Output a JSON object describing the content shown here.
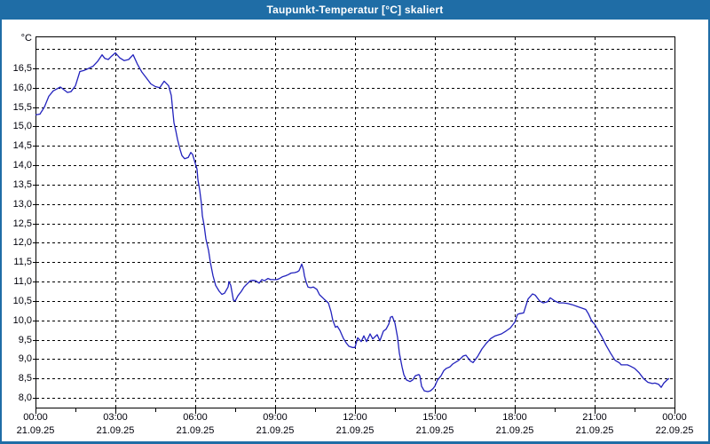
{
  "window": {
    "title": "Taupunkt-Temperatur [°C] skaliert"
  },
  "colors": {
    "titlebar": "#1f6da6",
    "frame": "#1f6da6",
    "line": "#2222bd",
    "plot_border": "#000000",
    "grid": "#000000",
    "text": "#00000a",
    "background": "#ffffff"
  },
  "chart_data": {
    "type": "line",
    "title": "Taupunkt-Temperatur [°C] skaliert",
    "unit_label": "°C",
    "xlabel": "",
    "ylabel": "°C",
    "grid": true,
    "legend": "none",
    "ylim": [
      7.77,
      17.32
    ],
    "ytick_step": 0.5,
    "ytick_top_unlabeled": 17.0,
    "yticks": [
      {
        "value": 16.5,
        "label": "16,5"
      },
      {
        "value": 16.0,
        "label": "16,0"
      },
      {
        "value": 15.5,
        "label": "15,5"
      },
      {
        "value": 15.0,
        "label": "15,0"
      },
      {
        "value": 14.5,
        "label": "14,5"
      },
      {
        "value": 14.0,
        "label": "14,0"
      },
      {
        "value": 13.5,
        "label": "13,5"
      },
      {
        "value": 13.0,
        "label": "13,0"
      },
      {
        "value": 12.5,
        "label": "12,5"
      },
      {
        "value": 12.0,
        "label": "12,0"
      },
      {
        "value": 11.5,
        "label": "11,5"
      },
      {
        "value": 11.0,
        "label": "11,0"
      },
      {
        "value": 10.5,
        "label": "10,5"
      },
      {
        "value": 10.0,
        "label": "10,0"
      },
      {
        "value": 9.5,
        "label": "9,5"
      },
      {
        "value": 9.0,
        "label": "9,0"
      },
      {
        "value": 8.5,
        "label": "8,5"
      },
      {
        "value": 8.0,
        "label": "8,0"
      }
    ],
    "xlim_hours": [
      0,
      24
    ],
    "x_minor_tick_hours": 1.5,
    "xticks": [
      {
        "hour": 0,
        "time": "00:00",
        "date": "21.09.25"
      },
      {
        "hour": 3,
        "time": "03:00",
        "date": "21.09.25"
      },
      {
        "hour": 6,
        "time": "06:00",
        "date": "21.09.25"
      },
      {
        "hour": 9,
        "time": "09:00",
        "date": "21.09.25"
      },
      {
        "hour": 12,
        "time": "12:00",
        "date": "21.09.25"
      },
      {
        "hour": 15,
        "time": "15:00",
        "date": "21.09.25"
      },
      {
        "hour": 18,
        "time": "18:00",
        "date": "21.09.25"
      },
      {
        "hour": 21,
        "time": "21:00",
        "date": "21.09.25"
      },
      {
        "hour": 24,
        "time": "00:00",
        "date": "22.09.25"
      }
    ],
    "series": [
      {
        "name": "Taupunkt-Temperatur",
        "points": [
          [
            0,
            15.3
          ],
          [
            10,
            15.32
          ],
          [
            20,
            15.5
          ],
          [
            30,
            15.78
          ],
          [
            40,
            15.92
          ],
          [
            56,
            16.02
          ],
          [
            64,
            15.95
          ],
          [
            72,
            15.88
          ],
          [
            80,
            15.9
          ],
          [
            90,
            16.05
          ],
          [
            100,
            16.42
          ],
          [
            110,
            16.45
          ],
          [
            120,
            16.5
          ],
          [
            130,
            16.56
          ],
          [
            140,
            16.68
          ],
          [
            150,
            16.85
          ],
          [
            156,
            16.76
          ],
          [
            164,
            16.73
          ],
          [
            170,
            16.8
          ],
          [
            180,
            16.9
          ],
          [
            190,
            16.77
          ],
          [
            200,
            16.7
          ],
          [
            210,
            16.73
          ],
          [
            220,
            16.85
          ],
          [
            230,
            16.6
          ],
          [
            240,
            16.4
          ],
          [
            250,
            16.25
          ],
          [
            260,
            16.1
          ],
          [
            270,
            16.03
          ],
          [
            280,
            16.0
          ],
          [
            290,
            16.17
          ],
          [
            300,
            16.05
          ],
          [
            306,
            15.8
          ],
          [
            312,
            15.1
          ],
          [
            316,
            14.9
          ],
          [
            320,
            14.67
          ],
          [
            326,
            14.4
          ],
          [
            330,
            14.25
          ],
          [
            336,
            14.17
          ],
          [
            344,
            14.2
          ],
          [
            350,
            14.33
          ],
          [
            354,
            14.28
          ],
          [
            360,
            14.05
          ],
          [
            364,
            13.9
          ],
          [
            366,
            13.63
          ],
          [
            370,
            13.36
          ],
          [
            374,
            13.0
          ],
          [
            376,
            12.7
          ],
          [
            380,
            12.45
          ],
          [
            384,
            12.1
          ],
          [
            390,
            11.8
          ],
          [
            394,
            11.5
          ],
          [
            400,
            11.15
          ],
          [
            406,
            10.9
          ],
          [
            414,
            10.75
          ],
          [
            420,
            10.67
          ],
          [
            426,
            10.7
          ],
          [
            434,
            10.86
          ],
          [
            436,
            11.0
          ],
          [
            440,
            10.9
          ],
          [
            446,
            10.52
          ],
          [
            450,
            10.5
          ],
          [
            456,
            10.63
          ],
          [
            464,
            10.75
          ],
          [
            470,
            10.86
          ],
          [
            476,
            10.93
          ],
          [
            484,
            11.02
          ],
          [
            490,
            11.03
          ],
          [
            496,
            11.02
          ],
          [
            504,
            10.96
          ],
          [
            510,
            11.05
          ],
          [
            516,
            11.02
          ],
          [
            524,
            11.08
          ],
          [
            530,
            11.05
          ],
          [
            544,
            11.05
          ],
          [
            550,
            11.08
          ],
          [
            556,
            11.12
          ],
          [
            564,
            11.15
          ],
          [
            570,
            11.18
          ],
          [
            576,
            11.22
          ],
          [
            584,
            11.23
          ],
          [
            590,
            11.25
          ],
          [
            594,
            11.28
          ],
          [
            600,
            11.45
          ],
          [
            604,
            11.3
          ],
          [
            606,
            11.15
          ],
          [
            610,
            10.98
          ],
          [
            614,
            10.86
          ],
          [
            620,
            10.84
          ],
          [
            626,
            10.86
          ],
          [
            634,
            10.8
          ],
          [
            640,
            10.66
          ],
          [
            650,
            10.55
          ],
          [
            660,
            10.45
          ],
          [
            666,
            10.22
          ],
          [
            670,
            10.0
          ],
          [
            676,
            9.82
          ],
          [
            680,
            9.85
          ],
          [
            686,
            9.74
          ],
          [
            694,
            9.53
          ],
          [
            700,
            9.42
          ],
          [
            706,
            9.33
          ],
          [
            714,
            9.3
          ],
          [
            720,
            9.3
          ],
          [
            726,
            9.55
          ],
          [
            734,
            9.45
          ],
          [
            740,
            9.6
          ],
          [
            746,
            9.45
          ],
          [
            754,
            9.65
          ],
          [
            760,
            9.52
          ],
          [
            770,
            9.63
          ],
          [
            776,
            9.47
          ],
          [
            784,
            9.72
          ],
          [
            790,
            9.77
          ],
          [
            796,
            9.9
          ],
          [
            800,
            10.08
          ],
          [
            804,
            10.1
          ],
          [
            810,
            9.93
          ],
          [
            816,
            9.55
          ],
          [
            820,
            9.15
          ],
          [
            826,
            8.8
          ],
          [
            830,
            8.6
          ],
          [
            836,
            8.46
          ],
          [
            844,
            8.42
          ],
          [
            850,
            8.46
          ],
          [
            856,
            8.57
          ],
          [
            864,
            8.6
          ],
          [
            866,
            8.57
          ],
          [
            870,
            8.3
          ],
          [
            876,
            8.18
          ],
          [
            884,
            8.16
          ],
          [
            890,
            8.18
          ],
          [
            896,
            8.24
          ],
          [
            900,
            8.3
          ],
          [
            906,
            8.46
          ],
          [
            914,
            8.57
          ],
          [
            920,
            8.7
          ],
          [
            926,
            8.76
          ],
          [
            934,
            8.8
          ],
          [
            940,
            8.87
          ],
          [
            954,
            8.97
          ],
          [
            964,
            9.08
          ],
          [
            970,
            9.1
          ],
          [
            980,
            8.95
          ],
          [
            986,
            8.91
          ],
          [
            996,
            9.06
          ],
          [
            1006,
            9.26
          ],
          [
            1016,
            9.41
          ],
          [
            1026,
            9.53
          ],
          [
            1036,
            9.6
          ],
          [
            1050,
            9.65
          ],
          [
            1060,
            9.72
          ],
          [
            1070,
            9.8
          ],
          [
            1080,
            9.95
          ],
          [
            1086,
            10.15
          ],
          [
            1090,
            10.17
          ],
          [
            1100,
            10.19
          ],
          [
            1110,
            10.55
          ],
          [
            1120,
            10.68
          ],
          [
            1126,
            10.65
          ],
          [
            1136,
            10.5
          ],
          [
            1144,
            10.45
          ],
          [
            1154,
            10.48
          ],
          [
            1160,
            10.58
          ],
          [
            1170,
            10.5
          ],
          [
            1180,
            10.45
          ],
          [
            1190,
            10.45
          ],
          [
            1200,
            10.43
          ],
          [
            1210,
            10.4
          ],
          [
            1220,
            10.36
          ],
          [
            1230,
            10.32
          ],
          [
            1240,
            10.28
          ],
          [
            1246,
            10.17
          ],
          [
            1254,
            9.97
          ],
          [
            1260,
            9.9
          ],
          [
            1266,
            9.78
          ],
          [
            1276,
            9.58
          ],
          [
            1286,
            9.35
          ],
          [
            1296,
            9.15
          ],
          [
            1306,
            8.97
          ],
          [
            1316,
            8.9
          ],
          [
            1320,
            8.85
          ],
          [
            1334,
            8.85
          ],
          [
            1340,
            8.82
          ],
          [
            1350,
            8.76
          ],
          [
            1360,
            8.65
          ],
          [
            1370,
            8.5
          ],
          [
            1380,
            8.4
          ],
          [
            1390,
            8.37
          ],
          [
            1396,
            8.38
          ],
          [
            1404,
            8.35
          ],
          [
            1410,
            8.27
          ],
          [
            1416,
            8.38
          ],
          [
            1424,
            8.47
          ],
          [
            1428,
            8.5
          ]
        ]
      }
    ]
  }
}
